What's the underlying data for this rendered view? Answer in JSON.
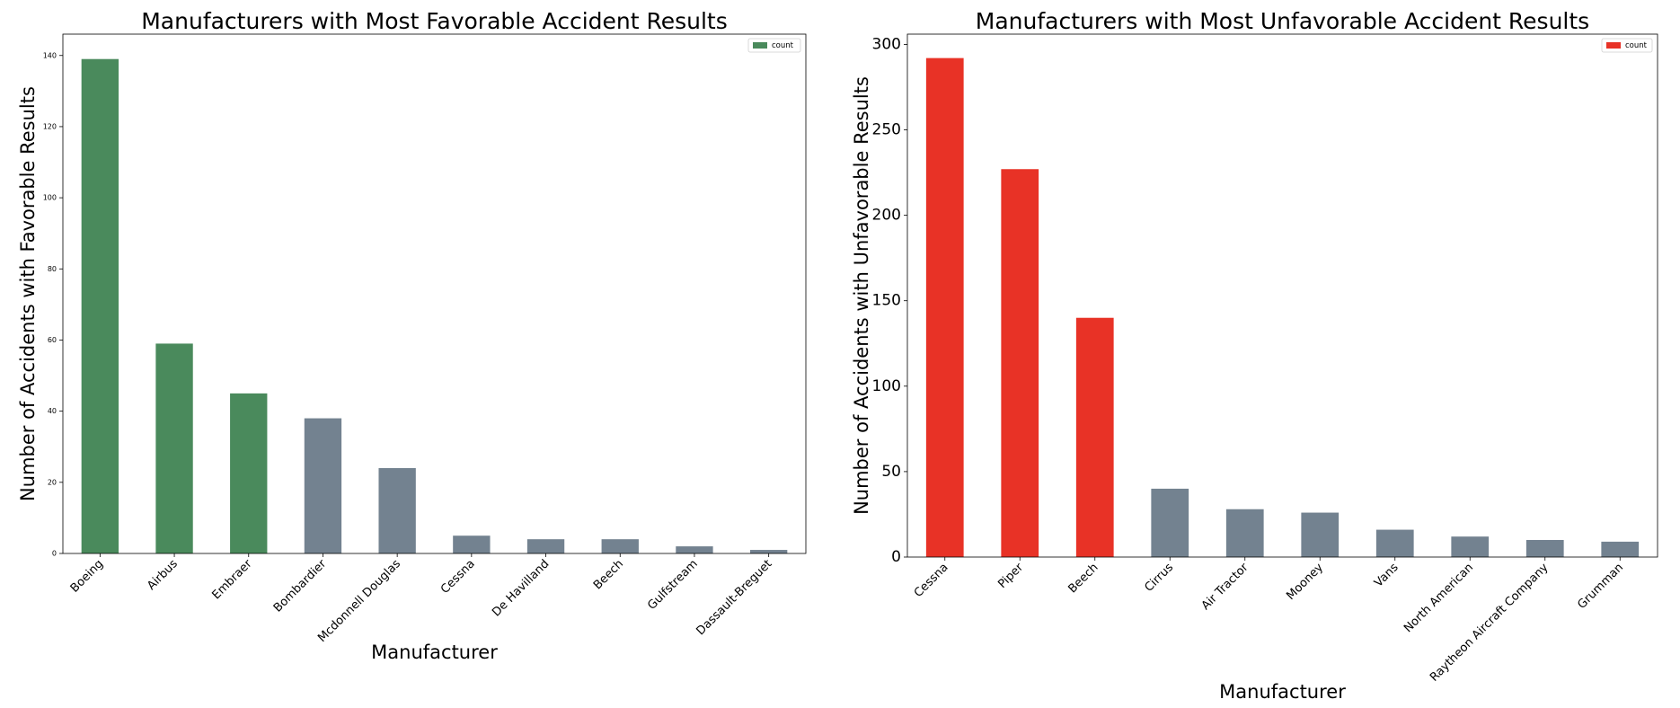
{
  "chart_data": [
    {
      "type": "bar",
      "title": "Manufacturers with Most Favorable Accident Results",
      "xlabel": "Manufacturer",
      "ylabel": "Number of Accidents with Favorable Results",
      "categories": [
        "Boeing",
        "Airbus",
        "Embraer",
        "Bombardier",
        "Mcdonnell Douglas",
        "Cessna",
        "De Havilland",
        "Beech",
        "Gulfstream",
        "Dassault-Breguet"
      ],
      "series": [
        {
          "name": "count",
          "values": [
            139,
            59,
            45,
            38,
            24,
            5,
            4,
            4,
            2,
            1
          ]
        }
      ],
      "bar_colors": [
        "#4a8a5c",
        "#4a8a5c",
        "#4a8a5c",
        "#738290",
        "#738290",
        "#738290",
        "#738290",
        "#738290",
        "#738290",
        "#738290"
      ],
      "legend_color": "#4a8a5c",
      "ylim": [
        0,
        146
      ],
      "yticks": [
        0,
        20,
        40,
        60,
        80,
        100,
        120,
        140
      ],
      "legend": "top-right",
      "grid": false
    },
    {
      "type": "bar",
      "title": "Manufacturers with Most Unfavorable Accident Results",
      "xlabel": "Manufacturer",
      "ylabel": "Number of Accidents with Unfavorable Results",
      "categories": [
        "Cessna",
        "Piper",
        "Beech",
        "Cirrus",
        "Air Tractor",
        "Mooney",
        "Vans",
        "North American",
        "Raytheon Aircraft Company",
        "Grumman"
      ],
      "series": [
        {
          "name": "count",
          "values": [
            292,
            227,
            140,
            40,
            28,
            26,
            16,
            12,
            10,
            9
          ]
        }
      ],
      "bar_colors": [
        "#e83226",
        "#e83226",
        "#e83226",
        "#738290",
        "#738290",
        "#738290",
        "#738290",
        "#738290",
        "#738290",
        "#738290"
      ],
      "legend_color": "#e83226",
      "ylim": [
        0,
        306
      ],
      "yticks": [
        0,
        50,
        100,
        150,
        200,
        250,
        300
      ],
      "legend": "top-right",
      "grid": false
    }
  ]
}
